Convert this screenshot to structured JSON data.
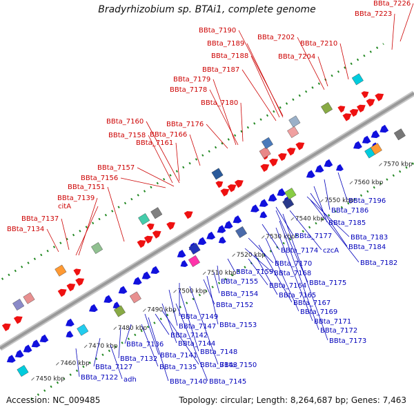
{
  "title": "Bradyrhizobium sp. BTAi1, complete genome",
  "footer": {
    "accession": "Accession: NC_009485",
    "topology": "Topology: circular; Length: 8,264,687 bp; Genes: 7,463"
  },
  "colors": {
    "forward_gene": "#ee1111",
    "reverse_gene": "#1111dd",
    "forward_label": "#cc0000",
    "reverse_label": "#0000bb",
    "backbone": "#999999",
    "dots": "#228822"
  },
  "scale_ticks": [
    "7450 kbp",
    "7460 kbp",
    "7470 kbp",
    "7480 kbp",
    "7490 kbp",
    "7500 kbp",
    "7510 kbp",
    "7520 kbp",
    "7530 kbp",
    "7540 kbp",
    "7550 kbp",
    "7560 kbp",
    "7570 kbp"
  ],
  "forward_labels": [
    "BBta_7134",
    "BBta_7137",
    "citA",
    "BBta_7139",
    "BBta_7151",
    "BBta_7156",
    "BBta_7157",
    "BBta_7158",
    "BBta_7160",
    "BBta_7161",
    "BBta_7166",
    "BBta_7176",
    "BBta_7180",
    "BBta_7178",
    "BBta_7179",
    "BBta_7187",
    "BBta_7188",
    "BBta_7189",
    "BBta_7190",
    "BBta_7202",
    "BBta_7204",
    "BBta_7210",
    "BBta_7223",
    "BBta_7226"
  ],
  "reverse_labels": [
    "BBta_7122",
    "adh",
    "BBta_7127",
    "BBta_7132",
    "BBta_7136",
    "BBta_7135",
    "BBta_7140",
    "BBta_7141",
    "BBta_7142",
    "BBta_7143",
    "BBta_7144",
    "BBta_7145",
    "BBta_7147",
    "BBta_7148",
    "BBta_7149",
    "BBta_7150",
    "BBta_7152",
    "BBta_7153",
    "BBta_7154",
    "BBta_7155",
    "BBta_7159",
    "BBta_7164",
    "BBta_7165",
    "BBta_7167",
    "BBta_7168",
    "BBta_7169",
    "BBta_7170",
    "BBta_7171",
    "BBta_7172",
    "BBta_7173",
    "BBta_7174",
    "BBta_7175",
    "BBta_7177",
    "czcA",
    "BBta_7182",
    "BBta_7183",
    "BBta_7184",
    "BBta_7185",
    "BBta_7186",
    "BBta_7196"
  ]
}
